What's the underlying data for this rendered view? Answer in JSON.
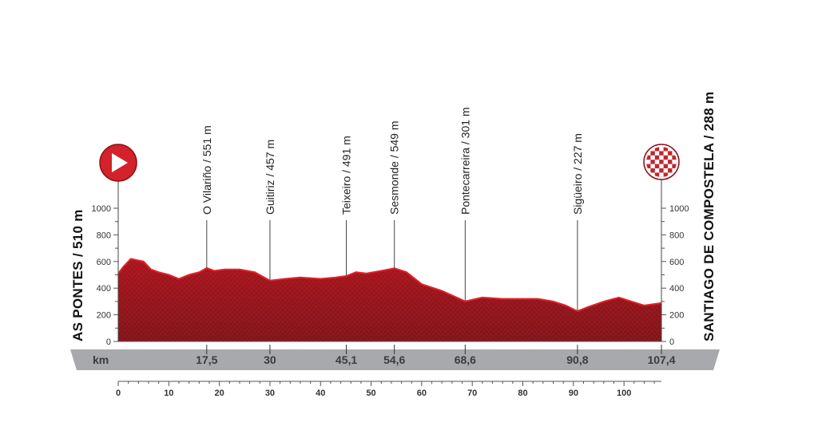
{
  "colors": {
    "profile": "#b3121b",
    "profile_dark": "#6e0a0f",
    "profile_highlight": "#e2222b",
    "bar": "#a7a9ac",
    "start_icon": "#d3222a",
    "finish_icon": "#c1262d"
  },
  "start": {
    "label": "AS PONTES / 510 m",
    "icon": "play-arrow-icon"
  },
  "finish": {
    "label": "SANTIAGO DE COMPOSTELA / 288 m",
    "icon": "checkered-flag-icon"
  },
  "km_bar": {
    "unit": "km",
    "marks": [
      {
        "km": 17.5,
        "label": "17,5"
      },
      {
        "km": 30,
        "label": "30"
      },
      {
        "km": 45.1,
        "label": "45,1"
      },
      {
        "km": 54.6,
        "label": "54,6"
      },
      {
        "km": 68.6,
        "label": "68,6"
      },
      {
        "km": 90.8,
        "label": "90,8"
      },
      {
        "km": 107.4,
        "label": "107,4"
      }
    ]
  },
  "chart_data": {
    "type": "area",
    "title": "",
    "xlabel": "",
    "ylabel": "",
    "xlim": [
      0,
      107.4
    ],
    "ylim": [
      0,
      1000
    ],
    "x_ticks": [
      0,
      10,
      20,
      30,
      40,
      50,
      60,
      70,
      80,
      90,
      100
    ],
    "y_ticks": [
      0,
      200,
      400,
      600,
      800,
      1000
    ],
    "y_tick_labels": [
      "0",
      "200",
      "400",
      "600",
      "800",
      "1000"
    ],
    "x": [
      0,
      1,
      2.5,
      5,
      6.5,
      8,
      10,
      12,
      14,
      16,
      17.5,
      19,
      21,
      24,
      27,
      30,
      33,
      36,
      40,
      43,
      45.1,
      47,
      49,
      52,
      54.6,
      57,
      60,
      64,
      68.6,
      72,
      76,
      80,
      83,
      86,
      88.5,
      90.8,
      93,
      96,
      99,
      101.5,
      104,
      107.4
    ],
    "series": [
      {
        "values": [
          510,
          560,
          620,
          600,
          540,
          520,
          500,
          470,
          500,
          520,
          551,
          530,
          540,
          540,
          520,
          457,
          470,
          480,
          470,
          480,
          491,
          520,
          510,
          530,
          549,
          520,
          430,
          380,
          301,
          330,
          320,
          320,
          320,
          300,
          270,
          227,
          260,
          300,
          330,
          300,
          270,
          288
        ]
      }
    ],
    "waypoints": [
      {
        "km": 17.5,
        "label": "O Vilariño / 551 m"
      },
      {
        "km": 30,
        "label": "Guitiriz / 457 m"
      },
      {
        "km": 45.1,
        "label": "Teixeiro / 491 m"
      },
      {
        "km": 54.6,
        "label": "Sesmonde / 549 m"
      },
      {
        "km": 68.6,
        "label": "Pontecarreira / 301 m"
      },
      {
        "km": 90.8,
        "label": "Sigüeiro / 227 m"
      }
    ],
    "grid": false
  }
}
